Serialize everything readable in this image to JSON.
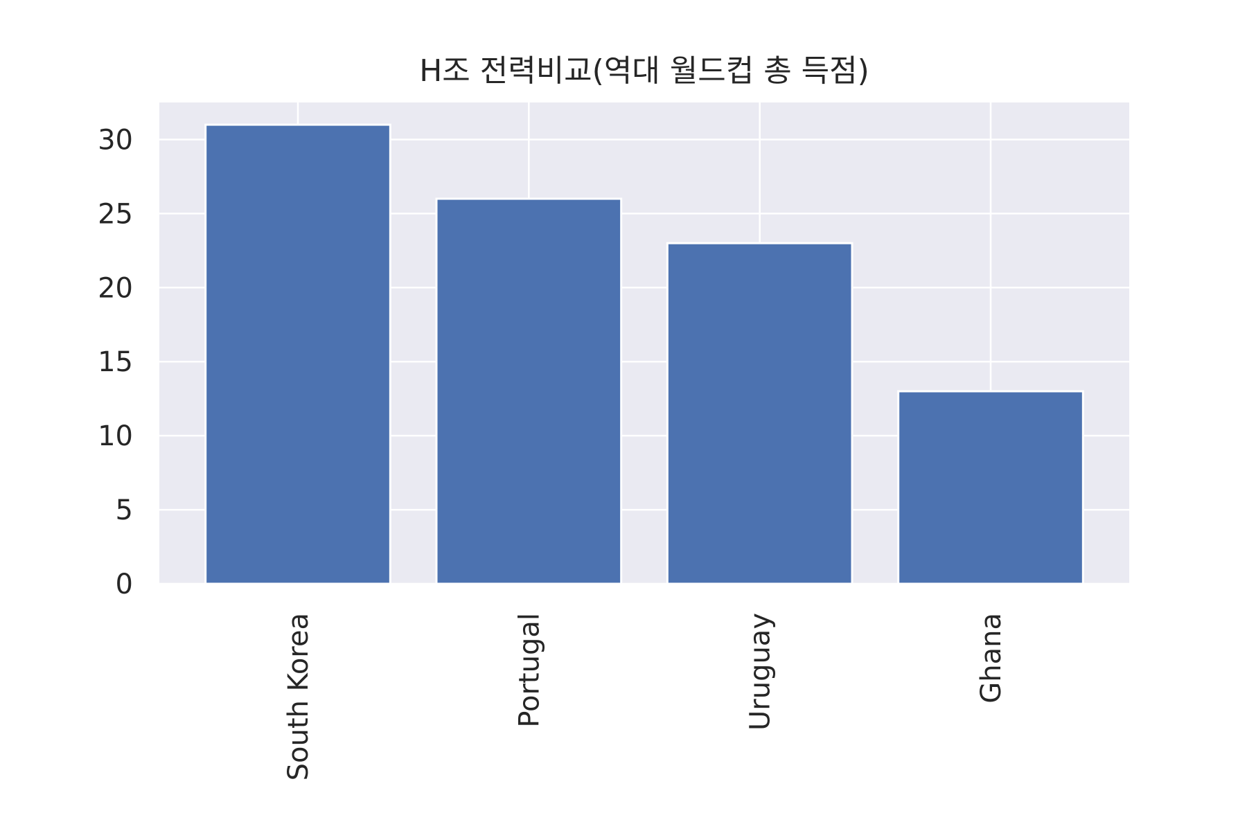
{
  "chart_data": {
    "type": "bar",
    "title": "H조 전력비교(역대 월드컵 총 득점)",
    "categories": [
      "South Korea",
      "Portugal",
      "Uruguay",
      "Ghana"
    ],
    "values": [
      31,
      26,
      23,
      13
    ],
    "xlabel": "",
    "ylabel": "",
    "ylim": [
      0,
      32.5
    ],
    "yticks": [
      0,
      5,
      10,
      15,
      20,
      25,
      30
    ],
    "grid": true,
    "colors": {
      "bar": "#4c72b0",
      "plot_background": "#eaeaf2",
      "grid": "#ffffff",
      "text": "#262626"
    }
  }
}
